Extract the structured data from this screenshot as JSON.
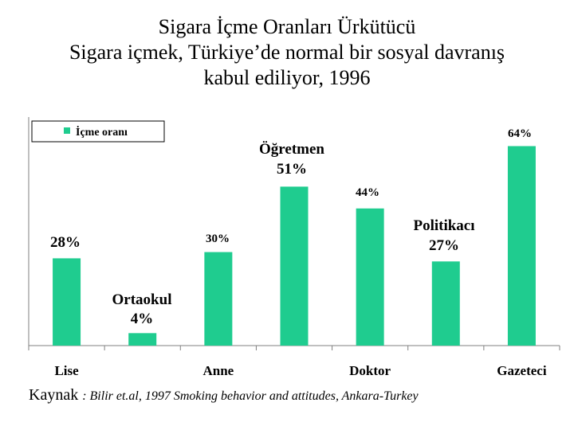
{
  "title_lines": [
    "Sigara İçme Oranları Ürkütücü",
    "Sigara içmek, Türkiye’de normal bir sosyal davranış",
    "kabul ediliyor, 1996"
  ],
  "chart_data": {
    "type": "bar",
    "categories": [
      "Lise",
      "Ortaokul",
      "Anne",
      "Öğretmen",
      "Doktor",
      "Politikacı",
      "Gazeteci"
    ],
    "x_tick_labels": [
      "Lise",
      "",
      "Anne",
      "",
      "Doktor",
      "",
      "Gazeteci"
    ],
    "series": [
      {
        "name": "İçme oranı",
        "values": [
          28,
          4,
          30,
          51,
          44,
          27,
          64
        ]
      }
    ],
    "data_labels": [
      "28%",
      "4%",
      "30%",
      "51%",
      "44%",
      "27%",
      "64%"
    ],
    "annotations": [
      "",
      "Ortaokul",
      "",
      "Öğretmen",
      "",
      "Politikacı",
      ""
    ],
    "ylim": [
      0,
      70
    ],
    "grid": false,
    "legend_position": "top-left",
    "bar_color": "#1fcc8f"
  },
  "source": {
    "label": "Kaynak",
    "reference": ": Bilir et.al, 1997 Smoking behavior and attitudes, Ankara-Turkey"
  }
}
